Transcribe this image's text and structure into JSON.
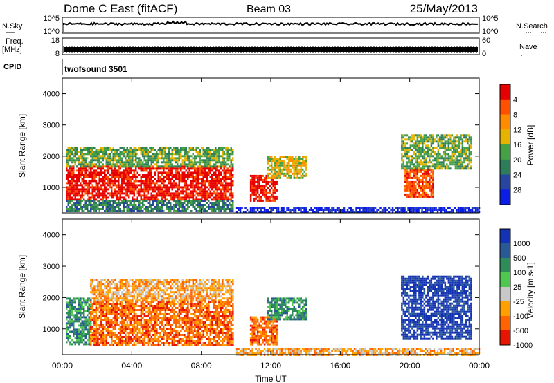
{
  "header": {
    "station": "Dome C East (fitACF)",
    "beam": "Beam 03",
    "date": "25/May/2013"
  },
  "top_panels": {
    "nsky_label": "N.Sky",
    "nsky_ticks": [
      "10^5",
      "10^0"
    ],
    "nsearch_label": "N.Search",
    "nsearch_ticks": [
      "10^5",
      "10^0"
    ],
    "freq_label": "Freq.",
    "freq_unit": "[MHz]",
    "freq_ticks": [
      "18",
      "8"
    ],
    "nave_label": "Nave",
    "nave_ticks": [
      "60",
      "0"
    ],
    "cpid_label": "CPID",
    "cpid_name": "twofsound 3501"
  },
  "colors": {
    "power": [
      "#0a1ee6",
      "#2846a0",
      "#2d7d5a",
      "#46a046",
      "#e6b400",
      "#ff8c00",
      "#ff5000",
      "#e60000"
    ],
    "velocity": [
      "#1432b4",
      "#2a5a96",
      "#2d8c5a",
      "#50c850",
      "#c8c8c8",
      "#ffa000",
      "#ff6400",
      "#e61400"
    ]
  },
  "chart_data": [
    {
      "type": "heatmap",
      "name": "power",
      "ylabel": "Slant Range [km]",
      "xlabel": "",
      "x_ticks": [
        "00:00",
        "04:00",
        "08:00",
        "12:00",
        "16:00",
        "20:00",
        "00:00"
      ],
      "y_ticks": [
        1000,
        2000,
        3000,
        4000
      ],
      "xlim_hours": [
        0,
        24
      ],
      "ylim_km": [
        180,
        4500
      ],
      "colorbar_label": "Power [dB]",
      "colorbar_ticks": [
        "4",
        "8",
        "12",
        "16",
        "20",
        "24",
        "28"
      ],
      "regions": [
        {
          "t": [
            0.2,
            9.8
          ],
          "r": [
            600,
            1700
          ],
          "level": 7
        },
        {
          "t": [
            0.2,
            9.8
          ],
          "r": [
            1700,
            2300
          ],
          "level": 3
        },
        {
          "t": [
            0.2,
            9.8
          ],
          "r": [
            250,
            600
          ],
          "level": 2
        },
        {
          "t": [
            10.8,
            12.3
          ],
          "r": [
            600,
            1400
          ],
          "level": 7
        },
        {
          "t": [
            11.8,
            14.0
          ],
          "r": [
            1300,
            2000
          ],
          "level": 4
        },
        {
          "t": [
            10.0,
            24.0
          ],
          "r": [
            200,
            380
          ],
          "level": 0
        },
        {
          "t": [
            19.7,
            21.3
          ],
          "r": [
            700,
            1600
          ],
          "level": 6
        },
        {
          "t": [
            19.5,
            23.5
          ],
          "r": [
            1600,
            2700
          ],
          "level": 3
        }
      ]
    },
    {
      "type": "heatmap",
      "name": "velocity",
      "ylabel": "Slant Range [km]",
      "xlabel": "Time UT",
      "x_ticks": [
        "00:00",
        "04:00",
        "08:00",
        "12:00",
        "16:00",
        "20:00",
        "00:00"
      ],
      "y_ticks": [
        1000,
        2000,
        3000,
        4000
      ],
      "xlim_hours": [
        0,
        24
      ],
      "ylim_km": [
        180,
        4500
      ],
      "colorbar_label": "Velocity [m s-1]",
      "colorbar_ticks": [
        "1000",
        "500",
        "100",
        "25",
        "-25",
        "-100",
        "-500",
        "-1000"
      ],
      "regions": [
        {
          "t": [
            0.2,
            1.6
          ],
          "r": [
            500,
            2000
          ],
          "level": 2
        },
        {
          "t": [
            1.6,
            9.8
          ],
          "r": [
            500,
            1900
          ],
          "level": 6
        },
        {
          "t": [
            1.6,
            9.8
          ],
          "r": [
            1900,
            2600
          ],
          "level": 5
        },
        {
          "t": [
            10.8,
            12.3
          ],
          "r": [
            500,
            1400
          ],
          "level": 6
        },
        {
          "t": [
            11.8,
            14.0
          ],
          "r": [
            1300,
            2000
          ],
          "level": 2
        },
        {
          "t": [
            10.0,
            24.0
          ],
          "r": [
            200,
            400
          ],
          "level": 5
        },
        {
          "t": [
            19.5,
            23.5
          ],
          "r": [
            700,
            2700
          ],
          "level": 0
        }
      ]
    }
  ]
}
